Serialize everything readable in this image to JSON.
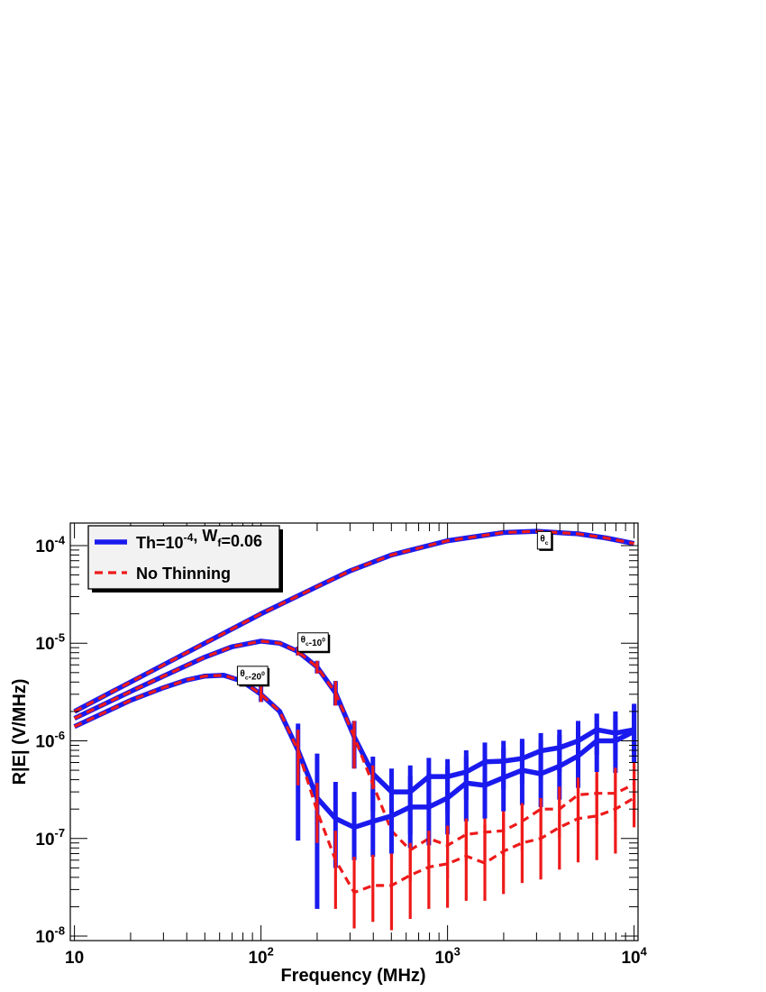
{
  "chart_data": {
    "type": "line",
    "xlabel": "Frequency (MHz)",
    "ylabel": "R|E| (V/MHz)",
    "x_scale": "log",
    "y_scale": "log",
    "xlim": [
      9.5,
      10500
    ],
    "ylim": [
      9e-09,
      0.00017
    ],
    "x_ticks": [
      {
        "value": 10,
        "base": "10",
        "exp": ""
      },
      {
        "value": 100,
        "base": "10",
        "exp": "2"
      },
      {
        "value": 1000,
        "base": "10",
        "exp": "3"
      },
      {
        "value": 10000,
        "base": "10",
        "exp": "4"
      }
    ],
    "y_ticks": [
      {
        "value": 1e-08,
        "base": "10",
        "exp": "-8"
      },
      {
        "value": 1e-07,
        "base": "10",
        "exp": "-7"
      },
      {
        "value": 1e-06,
        "base": "10",
        "exp": "-6"
      },
      {
        "value": 1e-05,
        "base": "10",
        "exp": "-5"
      },
      {
        "value": 0.0001,
        "base": "10",
        "exp": "-4"
      }
    ],
    "legend": {
      "placement": "top-left",
      "entries": [
        {
          "style": "solid",
          "color": "#1a1aee",
          "parts": [
            [
              "Th=10",
              ""
            ],
            [
              "-4",
              "sup"
            ],
            [
              ", W",
              ""
            ],
            [
              "f",
              "sub"
            ],
            [
              "=0.06",
              ""
            ]
          ]
        },
        {
          "style": "dashed",
          "color": "#ee1a1a",
          "parts": [
            [
              "No Thinning",
              ""
            ]
          ]
        }
      ]
    },
    "series": [
      {
        "style": "solid",
        "color": "#1a1aee",
        "curve_label": "θc",
        "points": [
          [
            10,
            2e-06
          ],
          [
            20,
            4e-06
          ],
          [
            30,
            6e-06
          ],
          [
            50,
            1e-05
          ],
          [
            70,
            1.4e-05
          ],
          [
            100,
            2e-05
          ],
          [
            200,
            3.8e-05
          ],
          [
            300,
            5.5e-05
          ],
          [
            500,
            8e-05
          ],
          [
            1000,
            0.000112
          ],
          [
            2000,
            0.000136
          ],
          [
            3000,
            0.00014
          ],
          [
            5000,
            0.000132
          ],
          [
            7000,
            0.00012
          ],
          [
            10000,
            0.000105
          ]
        ],
        "errors": []
      },
      {
        "style": "dashed",
        "color": "#ee1a1a",
        "curve_label": "θc",
        "points": [
          [
            10,
            2e-06
          ],
          [
            20,
            4e-06
          ],
          [
            30,
            6e-06
          ],
          [
            50,
            1e-05
          ],
          [
            70,
            1.4e-05
          ],
          [
            100,
            2e-05
          ],
          [
            200,
            3.8e-05
          ],
          [
            300,
            5.5e-05
          ],
          [
            500,
            8e-05
          ],
          [
            1000,
            0.000112
          ],
          [
            2000,
            0.000136
          ],
          [
            3000,
            0.00014
          ],
          [
            5000,
            0.000132
          ],
          [
            7000,
            0.00012
          ],
          [
            10000,
            0.000105
          ]
        ],
        "errors": []
      },
      {
        "style": "solid",
        "color": "#1a1aee",
        "curve_label": "θc-10°",
        "points": [
          [
            10,
            1.7e-06
          ],
          [
            20,
            3.2e-06
          ],
          [
            30,
            4.6e-06
          ],
          [
            50,
            7.2e-06
          ],
          [
            70,
            9.2e-06
          ],
          [
            100,
            1.05e-05
          ],
          [
            126,
            1e-05
          ],
          [
            158,
            8.2e-06
          ],
          [
            200,
            5.7e-06
          ],
          [
            251,
            3.1e-06
          ],
          [
            316,
            1.1e-06
          ],
          [
            398,
            4.6e-07
          ],
          [
            501,
            3e-07
          ],
          [
            631,
            3e-07
          ],
          [
            794,
            4.3e-07
          ],
          [
            1000,
            4.3e-07
          ],
          [
            1259,
            4.8e-07
          ],
          [
            1585,
            6.1e-07
          ],
          [
            1995,
            6.2e-07
          ],
          [
            2512,
            6.6e-07
          ],
          [
            3162,
            7.9e-07
          ],
          [
            3981,
            8.5e-07
          ],
          [
            5012,
            1e-06
          ],
          [
            6310,
            1.3e-06
          ],
          [
            7943,
            1.2e-06
          ],
          [
            10000,
            1.3e-06
          ]
        ],
        "errors": [
          [
            158,
            7.5e-06,
            9.2e-06
          ],
          [
            200,
            4.9e-06,
            6.6e-06
          ],
          [
            251,
            2.3e-06,
            4.1e-06
          ],
          [
            316,
            5.2e-07,
            1.6e-06
          ],
          [
            398,
            1.9e-07,
            6.9e-07
          ],
          [
            501,
            1.3e-07,
            5.2e-07
          ],
          [
            631,
            1.1e-07,
            5.6e-07
          ],
          [
            794,
            2e-07,
            6.7e-07
          ],
          [
            1000,
            1.9e-07,
            6.5e-07
          ],
          [
            1259,
            2.5e-07,
            8e-07
          ],
          [
            1585,
            3.1e-07,
            9.6e-07
          ],
          [
            1995,
            3.2e-07,
            1e-06
          ],
          [
            2512,
            3.6e-07,
            1.05e-06
          ],
          [
            3162,
            4.2e-07,
            1.2e-06
          ],
          [
            3981,
            4.8e-07,
            1.3e-06
          ],
          [
            5012,
            5.6e-07,
            1.6e-06
          ],
          [
            6310,
            7.2e-07,
            1.9e-06
          ],
          [
            7943,
            6.5e-07,
            1.8e-06
          ],
          [
            10000,
            6.9e-07,
            2.3e-06
          ]
        ]
      },
      {
        "style": "dashed",
        "color": "#ee1a1a",
        "curve_label": "θc-10°",
        "points": [
          [
            10,
            1.7e-06
          ],
          [
            20,
            3.2e-06
          ],
          [
            30,
            4.6e-06
          ],
          [
            50,
            7.2e-06
          ],
          [
            70,
            9.2e-06
          ],
          [
            100,
            1.05e-05
          ],
          [
            126,
            1e-05
          ],
          [
            158,
            8.2e-06
          ],
          [
            200,
            5.7e-06
          ],
          [
            251,
            3.1e-06
          ],
          [
            316,
            1.1e-06
          ],
          [
            398,
            3.6e-07
          ],
          [
            501,
            1.2e-07
          ],
          [
            631,
            7.6e-08
          ],
          [
            794,
            1e-07
          ],
          [
            1000,
            8.5e-08
          ],
          [
            1259,
            1.1e-07
          ],
          [
            1585,
            1.16e-07
          ],
          [
            1995,
            1.2e-07
          ],
          [
            2512,
            1.5e-07
          ],
          [
            3162,
            2e-07
          ],
          [
            3981,
            2e-07
          ],
          [
            5012,
            2.8e-07
          ],
          [
            6310,
            2.9e-07
          ],
          [
            7943,
            2.9e-07
          ],
          [
            10000,
            3.6e-07
          ]
        ],
        "errors": [
          [
            158,
            7.5e-06,
            9.2e-06
          ],
          [
            200,
            4.9e-06,
            6.6e-06
          ],
          [
            251,
            2.3e-06,
            4.1e-06
          ],
          [
            316,
            5.2e-07,
            1.6e-06
          ],
          [
            398,
            2e-07,
            5.6e-07
          ],
          [
            501,
            6e-08,
            2.2e-07
          ],
          [
            631,
            3.6e-08,
            1.5e-07
          ],
          [
            794,
            5.6e-08,
            1.8e-07
          ],
          [
            1000,
            3.9e-08,
            1.7e-07
          ],
          [
            1259,
            6e-08,
            2e-07
          ],
          [
            1585,
            6e-08,
            2.2e-07
          ],
          [
            1995,
            6.6e-08,
            2.3e-07
          ],
          [
            2512,
            7.4e-08,
            2.9e-07
          ],
          [
            3162,
            1e-07,
            3.7e-07
          ],
          [
            3981,
            1e-07,
            4e-07
          ],
          [
            5012,
            1.4e-07,
            5.2e-07
          ],
          [
            6310,
            1.4e-07,
            5.6e-07
          ],
          [
            7943,
            1.5e-07,
            5.2e-07
          ],
          [
            10000,
            2e-07,
            6.9e-07
          ]
        ]
      },
      {
        "style": "solid",
        "color": "#1a1aee",
        "curve_label": "θc-20°",
        "points": [
          [
            10,
            1.4e-06
          ],
          [
            20,
            2.6e-06
          ],
          [
            30,
            3.5e-06
          ],
          [
            40,
            4.2e-06
          ],
          [
            50,
            4.6e-06
          ],
          [
            63,
            4.7e-06
          ],
          [
            79,
            4.1e-06
          ],
          [
            100,
            3e-06
          ],
          [
            126,
            2e-06
          ],
          [
            158,
            8e-07
          ],
          [
            200,
            2.6e-07
          ],
          [
            251,
            1.6e-07
          ],
          [
            316,
            1.3e-07
          ],
          [
            398,
            1.5e-07
          ],
          [
            501,
            1.7e-07
          ],
          [
            631,
            2.1e-07
          ],
          [
            794,
            2.1e-07
          ],
          [
            1000,
            2.6e-07
          ],
          [
            1259,
            3.7e-07
          ],
          [
            1585,
            3.5e-07
          ],
          [
            1995,
            4.2e-07
          ],
          [
            2512,
            5e-07
          ],
          [
            3162,
            4.6e-07
          ],
          [
            3981,
            5.5e-07
          ],
          [
            5012,
            7e-07
          ],
          [
            6310,
            1e-06
          ],
          [
            7943,
            1e-06
          ],
          [
            10000,
            1.25e-06
          ]
        ],
        "errors": [
          [
            79,
            3.8e-06,
            4.4e-06
          ],
          [
            100,
            2.5e-06,
            3.6e-06
          ],
          [
            158,
            9.5e-08,
            1.5e-06
          ],
          [
            200,
            1.9e-08,
            7.4e-07
          ],
          [
            251,
            5e-08,
            3.8e-07
          ],
          [
            316,
            6e-08,
            3e-07
          ],
          [
            398,
            6.5e-08,
            3.2e-07
          ],
          [
            501,
            7e-08,
            3.8e-07
          ],
          [
            631,
            8e-08,
            4.4e-07
          ],
          [
            794,
            8.5e-08,
            4.6e-07
          ],
          [
            1000,
            1.1e-07,
            5.5e-07
          ],
          [
            1259,
            1.5e-07,
            6.9e-07
          ],
          [
            1585,
            1.6e-07,
            7.2e-07
          ],
          [
            1995,
            1.9e-07,
            8.5e-07
          ],
          [
            2512,
            2.2e-07,
            1e-06
          ],
          [
            3162,
            2.1e-07,
            1e-06
          ],
          [
            3981,
            2.5e-07,
            1.15e-06
          ],
          [
            5012,
            3.3e-07,
            1.4e-06
          ],
          [
            6310,
            4.8e-07,
            1.9e-06
          ],
          [
            7943,
            4.7e-07,
            2e-06
          ],
          [
            10000,
            6e-07,
            2.4e-06
          ]
        ]
      },
      {
        "style": "dashed",
        "color": "#ee1a1a",
        "curve_label": "θc-20°",
        "points": [
          [
            10,
            1.4e-06
          ],
          [
            20,
            2.6e-06
          ],
          [
            30,
            3.5e-06
          ],
          [
            40,
            4.2e-06
          ],
          [
            50,
            4.6e-06
          ],
          [
            63,
            4.7e-06
          ],
          [
            79,
            4.1e-06
          ],
          [
            100,
            3e-06
          ],
          [
            126,
            2e-06
          ],
          [
            158,
            8e-07
          ],
          [
            200,
            1.9e-07
          ],
          [
            251,
            6e-08
          ],
          [
            316,
            2.8e-08
          ],
          [
            398,
            3.3e-08
          ],
          [
            501,
            3.3e-08
          ],
          [
            631,
            4.2e-08
          ],
          [
            794,
            5.1e-08
          ],
          [
            1000,
            5.5e-08
          ],
          [
            1259,
            6.6e-08
          ],
          [
            1585,
            5.6e-08
          ],
          [
            1995,
            7.4e-08
          ],
          [
            2512,
            9e-08
          ],
          [
            3162,
            1e-07
          ],
          [
            3981,
            1.3e-07
          ],
          [
            5012,
            1.6e-07
          ],
          [
            6310,
            1.7e-07
          ],
          [
            7943,
            2e-07
          ],
          [
            10000,
            2.6e-07
          ]
        ],
        "errors": [
          [
            79,
            3.8e-06,
            4.4e-06
          ],
          [
            100,
            2.5e-06,
            3.6e-06
          ],
          [
            158,
            3.5e-07,
            1.3e-06
          ],
          [
            200,
            9e-08,
            3.7e-07
          ],
          [
            251,
            1.9e-08,
            1.2e-07
          ],
          [
            316,
            1.2e-08,
            6.5e-08
          ],
          [
            398,
            1.4e-08,
            6.8e-08
          ],
          [
            501,
            1.15e-08,
            7e-08
          ],
          [
            631,
            1.5e-08,
            9e-08
          ],
          [
            794,
            1.9e-08,
            1.2e-07
          ],
          [
            1000,
            1.95e-08,
            1.35e-07
          ],
          [
            1259,
            2.3e-08,
            1.6e-07
          ],
          [
            1585,
            2.3e-08,
            1.4e-07
          ],
          [
            1995,
            2.7e-08,
            1.8e-07
          ],
          [
            2512,
            3.5e-08,
            2.3e-07
          ],
          [
            3162,
            3.8e-08,
            2.6e-07
          ],
          [
            3981,
            4.8e-08,
            3.4e-07
          ],
          [
            5012,
            5.7e-08,
            4.2e-07
          ],
          [
            6310,
            6e-08,
            4.5e-07
          ],
          [
            7943,
            7e-08,
            5.3e-07
          ],
          [
            10000,
            1.3e-07,
            5.5e-07
          ]
        ]
      }
    ],
    "curve_tags": [
      {
        "at": [
          3300,
          0.00012
        ],
        "parts": [
          [
            "θ",
            ""
          ],
          [
            "c",
            "sub"
          ]
        ]
      },
      {
        "at": [
          190,
          1.1e-05
        ],
        "parts": [
          [
            "θ",
            ""
          ],
          [
            "c",
            "sub"
          ],
          [
            "-10",
            ""
          ],
          [
            "0",
            "sup"
          ]
        ]
      },
      {
        "at": [
          90,
          5e-06
        ],
        "parts": [
          [
            "θ",
            ""
          ],
          [
            "c",
            "sub"
          ],
          [
            "-20",
            ""
          ],
          [
            "0",
            "sup"
          ]
        ]
      }
    ]
  }
}
